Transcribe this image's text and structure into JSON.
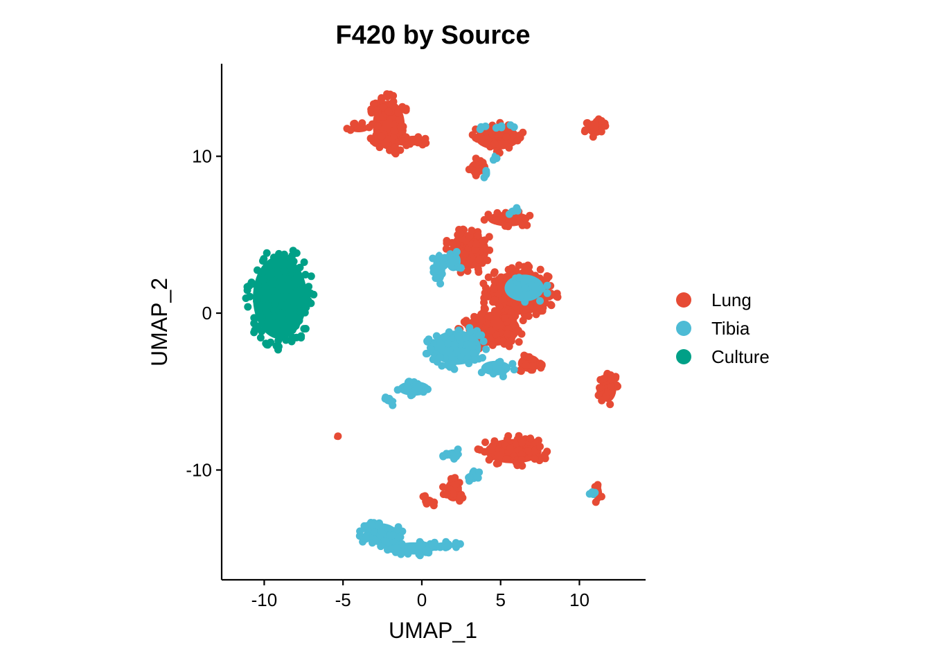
{
  "chart_data": {
    "type": "scatter",
    "title": "F420 by Source",
    "xlabel": "UMAP_1",
    "ylabel": "UMAP_2",
    "xlim": [
      -12.7,
      14.2
    ],
    "ylim": [
      -17.0,
      15.9
    ],
    "x_ticks": [
      -10,
      -5,
      0,
      5,
      10
    ],
    "y_ticks": [
      -10,
      0,
      10
    ],
    "x_tick_labels": [
      "-10",
      "-5",
      "0",
      "5",
      "10"
    ],
    "y_tick_labels": [
      "-10",
      "0",
      "10"
    ],
    "grid": false,
    "legend_position": "right",
    "series": [
      {
        "name": "Lung",
        "color": "#E64B35",
        "clusters": [
          {
            "cx": -2.1,
            "cy": 12.0,
            "rx": 1.3,
            "ry": 2.0,
            "n": 70
          },
          {
            "cx": -4.0,
            "cy": 11.8,
            "rx": 0.8,
            "ry": 0.35,
            "n": 8
          },
          {
            "cx": -0.5,
            "cy": 11.0,
            "rx": 0.9,
            "ry": 0.4,
            "n": 10
          },
          {
            "cx": 4.8,
            "cy": 11.2,
            "rx": 1.8,
            "ry": 1.0,
            "n": 35
          },
          {
            "cx": 3.6,
            "cy": 9.3,
            "rx": 0.8,
            "ry": 0.6,
            "n": 10
          },
          {
            "cx": 11.0,
            "cy": 11.8,
            "rx": 0.7,
            "ry": 0.65,
            "n": 16
          },
          {
            "cx": 3.0,
            "cy": 4.0,
            "rx": 1.6,
            "ry": 1.5,
            "n": 55
          },
          {
            "cx": 5.5,
            "cy": 6.0,
            "rx": 1.7,
            "ry": 0.6,
            "n": 22
          },
          {
            "cx": 6.2,
            "cy": 1.3,
            "rx": 2.5,
            "ry": 1.8,
            "n": 110
          },
          {
            "cx": 4.5,
            "cy": -1.0,
            "rx": 2.2,
            "ry": 1.4,
            "n": 60
          },
          {
            "cx": 6.8,
            "cy": -3.2,
            "rx": 0.9,
            "ry": 0.7,
            "n": 18
          },
          {
            "cx": 11.8,
            "cy": -4.8,
            "rx": 0.7,
            "ry": 1.1,
            "n": 22
          },
          {
            "cx": -5.4,
            "cy": -7.9,
            "rx": 0.1,
            "ry": 0.1,
            "n": 1
          },
          {
            "cx": 5.8,
            "cy": -8.8,
            "rx": 2.3,
            "ry": 1.0,
            "n": 55
          },
          {
            "cx": 2.0,
            "cy": -11.3,
            "rx": 0.7,
            "ry": 0.9,
            "n": 16
          },
          {
            "cx": 0.4,
            "cy": -12.0,
            "rx": 0.5,
            "ry": 0.4,
            "n": 6
          },
          {
            "cx": 11.2,
            "cy": -11.5,
            "rx": 0.3,
            "ry": 0.7,
            "n": 8
          }
        ]
      },
      {
        "name": "Tibia",
        "color": "#4DBBD5",
        "clusters": [
          {
            "cx": 3.8,
            "cy": 11.8,
            "rx": 0.3,
            "ry": 0.2,
            "n": 3
          },
          {
            "cx": 4.8,
            "cy": 11.9,
            "rx": 0.3,
            "ry": 0.2,
            "n": 3
          },
          {
            "cx": 5.8,
            "cy": 11.9,
            "rx": 0.2,
            "ry": 0.2,
            "n": 2
          },
          {
            "cx": 4.6,
            "cy": 10.0,
            "rx": 0.2,
            "ry": 0.3,
            "n": 2
          },
          {
            "cx": 4.1,
            "cy": 8.9,
            "rx": 0.3,
            "ry": 0.4,
            "n": 3
          },
          {
            "cx": 1.1,
            "cy": 2.9,
            "rx": 0.5,
            "ry": 1.3,
            "n": 14
          },
          {
            "cx": 2.0,
            "cy": 3.3,
            "rx": 0.6,
            "ry": 0.8,
            "n": 5
          },
          {
            "cx": 5.8,
            "cy": 6.5,
            "rx": 0.4,
            "ry": 0.3,
            "n": 3
          },
          {
            "cx": 6.5,
            "cy": 1.6,
            "rx": 1.6,
            "ry": 1.1,
            "n": 12
          },
          {
            "cx": 2.2,
            "cy": -2.2,
            "rx": 2.0,
            "ry": 1.4,
            "n": 60
          },
          {
            "cx": 4.7,
            "cy": -3.5,
            "rx": 1.2,
            "ry": 0.6,
            "n": 14
          },
          {
            "cx": -0.5,
            "cy": -4.8,
            "rx": 1.3,
            "ry": 0.6,
            "n": 14
          },
          {
            "cx": -2.0,
            "cy": -5.6,
            "rx": 0.5,
            "ry": 0.3,
            "n": 6
          },
          {
            "cx": 2.0,
            "cy": -9.0,
            "rx": 0.7,
            "ry": 0.4,
            "n": 8
          },
          {
            "cx": 3.3,
            "cy": -10.3,
            "rx": 0.4,
            "ry": 0.6,
            "n": 5
          },
          {
            "cx": 10.8,
            "cy": -11.4,
            "rx": 0.3,
            "ry": 0.3,
            "n": 3
          },
          {
            "cx": -2.6,
            "cy": -14.1,
            "rx": 1.4,
            "ry": 0.9,
            "n": 50
          },
          {
            "cx": -0.5,
            "cy": -15.0,
            "rx": 1.7,
            "ry": 0.5,
            "n": 35
          },
          {
            "cx": 1.5,
            "cy": -14.8,
            "rx": 1.0,
            "ry": 0.25,
            "n": 10
          }
        ]
      },
      {
        "name": "Culture",
        "color": "#00A087",
        "clusters": [
          {
            "cx": -9.0,
            "cy": 1.0,
            "rx": 2.2,
            "ry": 3.4,
            "n": 120
          }
        ]
      }
    ]
  }
}
